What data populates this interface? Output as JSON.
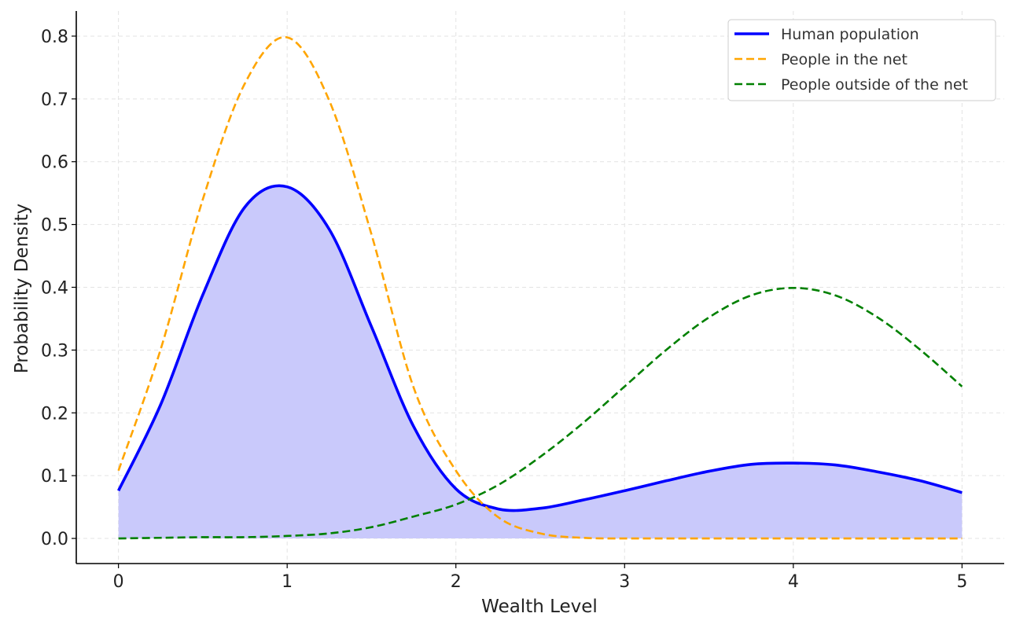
{
  "chart_data": {
    "type": "line",
    "title": "",
    "xlabel": "Wealth Level",
    "ylabel": "Probability Density",
    "xlim": [
      -0.25,
      5.25
    ],
    "ylim": [
      -0.04,
      0.84
    ],
    "xticks": [
      0,
      1,
      2,
      3,
      4,
      5
    ],
    "xtick_labels": [
      "0",
      "1",
      "2",
      "3",
      "4",
      "5"
    ],
    "yticks": [
      0.0,
      0.1,
      0.2,
      0.3,
      0.4,
      0.5,
      0.6,
      0.7,
      0.8
    ],
    "ytick_labels": [
      "0.0",
      "0.1",
      "0.2",
      "0.3",
      "0.4",
      "0.5",
      "0.6",
      "0.7",
      "0.8"
    ],
    "grid": true,
    "legend_position": "top-right",
    "x": [
      0,
      0.25,
      0.5,
      0.75,
      1.0,
      1.25,
      1.5,
      1.75,
      2.0,
      2.25,
      2.5,
      2.75,
      3.0,
      3.25,
      3.5,
      3.75,
      4.0,
      4.25,
      4.5,
      4.75,
      5.0
    ],
    "series": [
      {
        "name": "Human population",
        "color": "#0000ff",
        "style": "solid",
        "fill": "#c9c9fb",
        "values": [
          0.076,
          0.213,
          0.388,
          0.528,
          0.56,
          0.492,
          0.337,
          0.178,
          0.079,
          0.047,
          0.048,
          0.061,
          0.076,
          0.092,
          0.107,
          0.118,
          0.12,
          0.117,
          0.106,
          0.092,
          0.073
        ]
      },
      {
        "name": "People in the net",
        "color": "#ffa500",
        "style": "dashed",
        "values": [
          0.108,
          0.301,
          0.54,
          0.725,
          0.798,
          0.697,
          0.484,
          0.24,
          0.108,
          0.034,
          0.008,
          0.001,
          0.0,
          0.0,
          0.0,
          0.0,
          0.0,
          0.0,
          0.0,
          0.0,
          0.0
        ]
      },
      {
        "name": "People outside of the net",
        "color": "#008000",
        "style": "dashed",
        "values": [
          0.0,
          0.001,
          0.002,
          0.002,
          0.004,
          0.008,
          0.018,
          0.035,
          0.054,
          0.085,
          0.13,
          0.183,
          0.242,
          0.301,
          0.352,
          0.387,
          0.399,
          0.387,
          0.352,
          0.301,
          0.242
        ]
      }
    ]
  }
}
